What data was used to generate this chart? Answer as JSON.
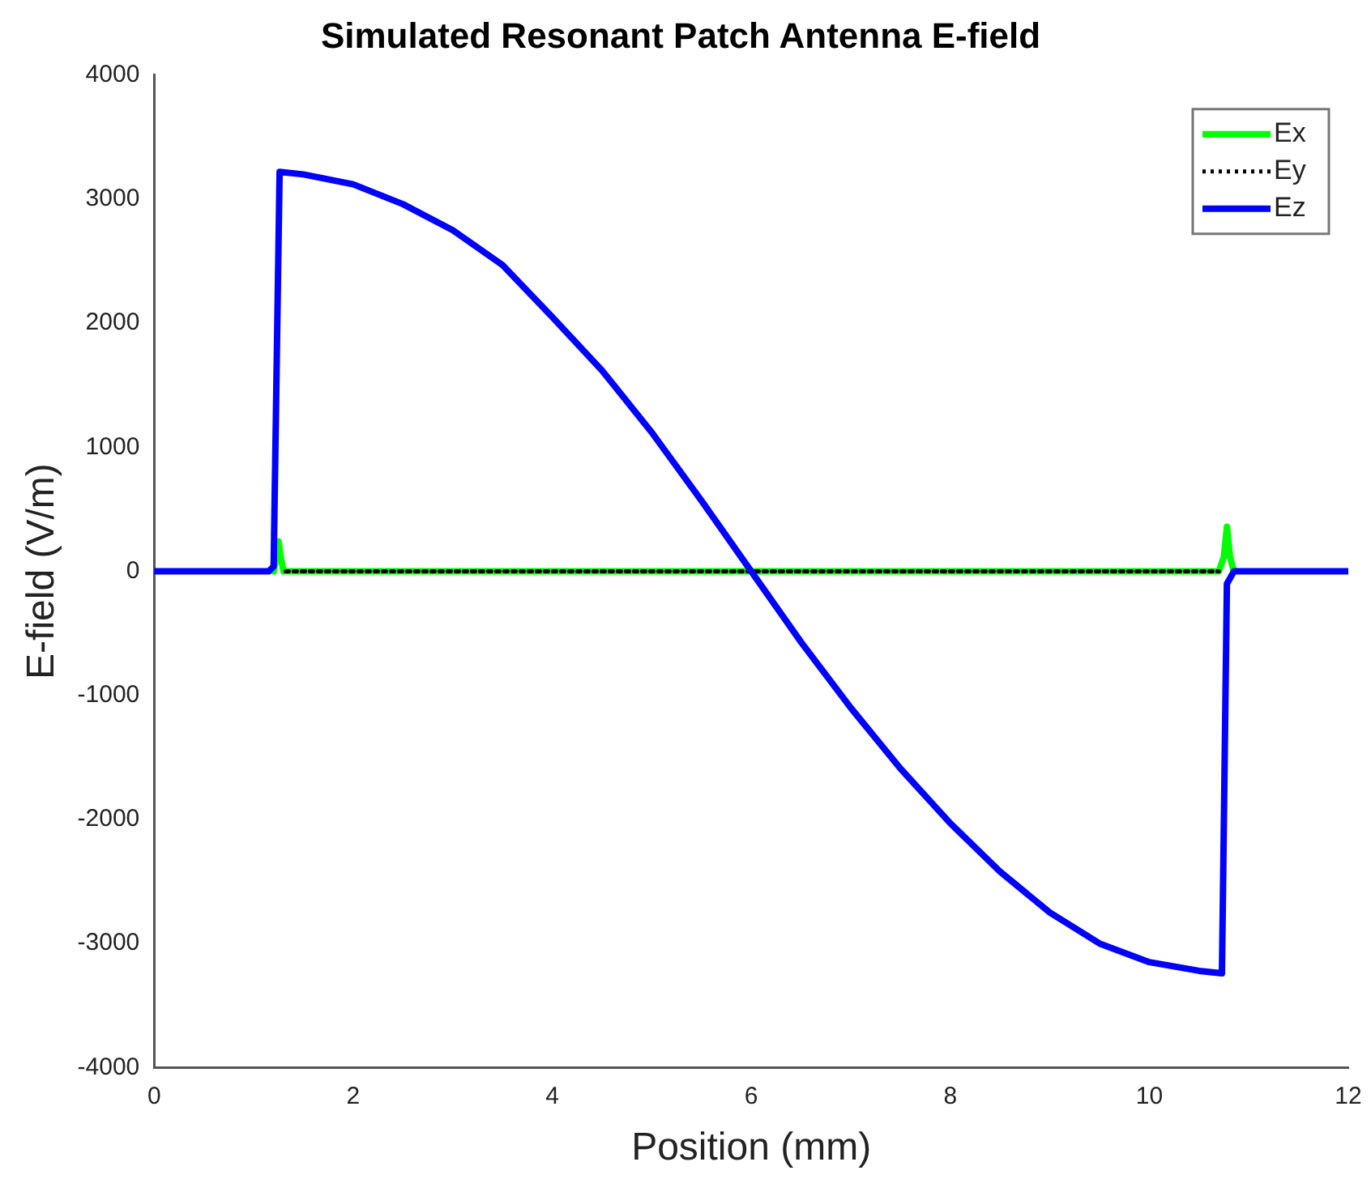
{
  "chart_data": {
    "type": "line",
    "title": "Simulated Resonant Patch Antenna E-field",
    "xlabel": "Position (mm)",
    "ylabel": "E-field (V/m)",
    "xlim": [
      0,
      12
    ],
    "xticks": [
      0,
      2,
      4,
      6,
      8,
      10,
      12
    ],
    "ylim": [
      -4000,
      4000
    ],
    "yticks": [
      -4000,
      -3000,
      -2000,
      -1000,
      0,
      1000,
      2000,
      3000,
      4000
    ],
    "grid": false,
    "legend": "top right",
    "marker": "none",
    "series": [
      {
        "name": "Ex",
        "color": "#00ff00",
        "line_style": "solid",
        "x": [
          1.2,
          1.23,
          1.25,
          1.27,
          1.3,
          10.7,
          10.75,
          10.78,
          10.81,
          10.85
        ],
        "values": [
          0,
          120,
          240,
          120,
          0,
          0,
          120,
          360,
          120,
          0
        ]
      },
      {
        "name": "Ey",
        "color": "#000000",
        "line_style": "dotted",
        "x": [
          1.32,
          10.7
        ],
        "values": [
          0,
          0
        ]
      },
      {
        "name": "Ez",
        "color": "#0000ff",
        "line_style": "solid",
        "x": [
          0,
          0.5,
          1.0,
          1.15,
          1.2,
          1.26,
          1.5,
          2,
          2.5,
          3,
          3.5,
          4,
          4.5,
          5,
          5.5,
          6,
          6.5,
          7,
          7.5,
          8,
          8.5,
          9,
          9.5,
          10,
          10.5,
          10.73,
          10.78,
          10.85,
          11,
          12
        ],
        "values": [
          0,
          0,
          0,
          0,
          40,
          3220,
          3200,
          3120,
          2960,
          2750,
          2470,
          2050,
          1620,
          1120,
          570,
          0,
          -570,
          -1100,
          -1590,
          -2030,
          -2420,
          -2750,
          -3000,
          -3150,
          -3220,
          -3240,
          -100,
          0,
          0,
          0
        ]
      }
    ]
  }
}
